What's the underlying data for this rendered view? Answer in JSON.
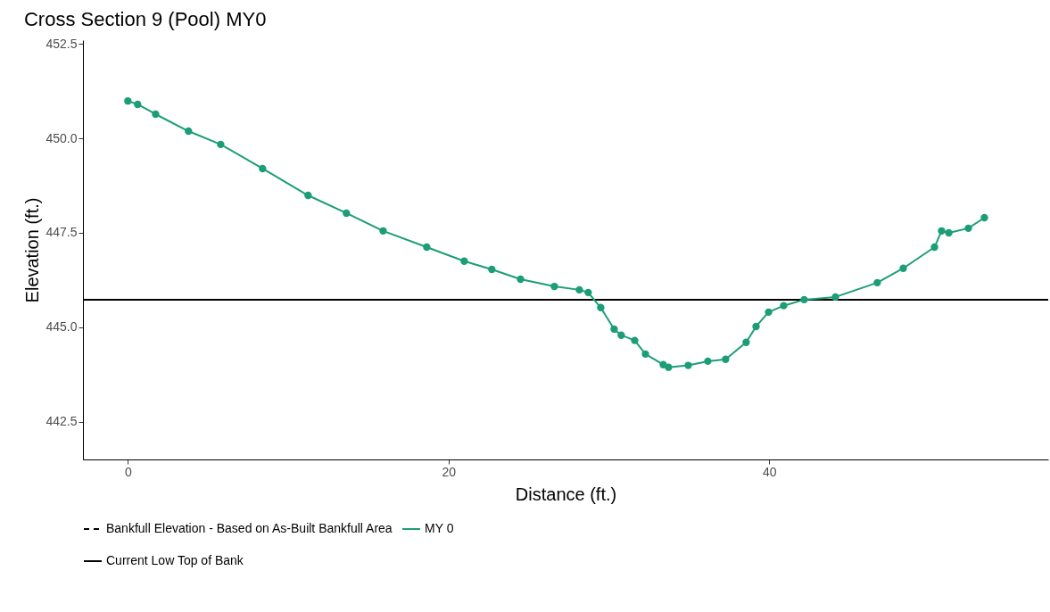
{
  "chart_data": {
    "type": "line",
    "title": "Cross Section 9 (Pool) MY0",
    "xlabel": "Distance (ft.)",
    "ylabel": "Elevation (ft.)",
    "xlim": [
      -2.8,
      57.4
    ],
    "xticks": [
      0,
      20,
      40
    ],
    "ylim": [
      441.5,
      452.6
    ],
    "yticks": [
      442.5,
      {
        "value": 445,
        "label": "445.0"
      },
      447.5,
      {
        "value": 450,
        "label": "450.0"
      },
      452.5
    ],
    "grid": false,
    "legend": "bottom",
    "marker": "circle",
    "line_style": "solid",
    "series": [
      {
        "name": "MY 0",
        "color": "#1b9e77",
        "x": [
          0,
          0.61,
          1.73,
          3.78,
          5.79,
          8.4,
          11.24,
          13.63,
          15.92,
          18.64,
          20.98,
          22.7,
          24.49,
          26.6,
          28.16,
          28.71,
          29.49,
          30.33,
          30.77,
          31.61,
          32.28,
          33.39,
          33.72,
          34.95,
          36.17,
          37.28,
          38.56,
          39.18,
          39.96,
          40.9,
          42.18,
          44.13,
          46.74,
          48.36,
          50.31,
          50.75,
          51.2,
          52.42,
          53.42
        ],
        "values": [
          450.99,
          450.9,
          450.64,
          450.19,
          449.84,
          449.2,
          448.49,
          448.02,
          447.55,
          447.12,
          446.75,
          446.53,
          446.27,
          446.08,
          445.99,
          445.92,
          445.52,
          444.95,
          444.79,
          444.65,
          444.29,
          444.01,
          443.94,
          443.99,
          444.1,
          444.15,
          444.6,
          445.02,
          445.4,
          445.57,
          445.73,
          445.8,
          446.18,
          446.56,
          447.12,
          447.55,
          447.5,
          447.62,
          447.9
        ]
      }
    ],
    "ref_lines": [
      {
        "axis": "y",
        "value": null,
        "label": "Bankfull Elevation - Based on As-Built Bankfull Area",
        "line_style": "dashed",
        "color": "#000000"
      },
      {
        "axis": "y",
        "value": 445.73,
        "label": "Current Low Top of Bank",
        "line_style": "solid",
        "color": "#000000"
      }
    ]
  }
}
